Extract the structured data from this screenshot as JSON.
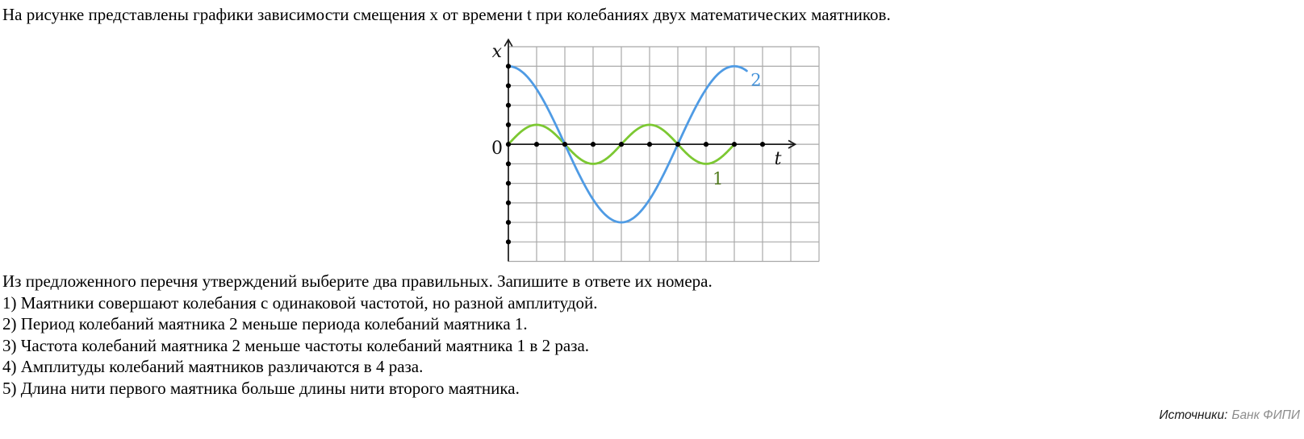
{
  "problem": {
    "intro": "На рисунке представлены графики зависимости смещения x от времени t при колебаниях двух математических маятников.",
    "task": "Из предложенного перечня утверждений выберите два правильных. Запишите в ответе их номера.",
    "statements": [
      "1) Маятники совершают колебания с одинаковой частотой, но разной амплитудой.",
      "2) Период колебаний маятника 2 меньше периода колебаний маятника 1.",
      "3) Частота колебаний маятника 2 меньше частоты колебаний маятника 1 в 2 раза.",
      "4) Амплитуды колебаний маятников различаются в 4 раза.",
      "5) Длина нити первого маятника больше длины нити второго маятника."
    ]
  },
  "source": {
    "label": "Источники:",
    "value": "Банк ФИПИ"
  },
  "chart_data": {
    "type": "line",
    "title": "",
    "xlabel": "t",
    "ylabel": "x",
    "origin_label": "0",
    "grid": {
      "columns": 11,
      "rows": 11,
      "axis_row_from_top": 5,
      "color": "#a9a9a9"
    },
    "axes_color": "#1a1a1a",
    "dot_color": "#000000",
    "dots": {
      "t_axis_units": [
        1,
        2,
        3,
        4,
        5,
        6,
        7,
        8,
        9
      ],
      "x_axis_units": [
        4,
        3,
        2,
        1,
        0,
        -1,
        -2,
        -3,
        -4,
        -5
      ]
    },
    "series": [
      {
        "name": "1",
        "color": "#7cc832",
        "label_color": "#527c1d",
        "amplitude": 1,
        "period": 4,
        "waveform": "sin",
        "t_start": 0,
        "t_end": 8,
        "label_pos": {
          "t": 7.42,
          "x": -2.05
        }
      },
      {
        "name": "2",
        "color": "#4f9be4",
        "label_color": "#4392da",
        "amplitude": 4,
        "period": 8,
        "waveform": "cos",
        "t_start": 0,
        "t_end": 8.45,
        "label_pos": {
          "t": 8.77,
          "x": 3.0
        }
      }
    ]
  }
}
